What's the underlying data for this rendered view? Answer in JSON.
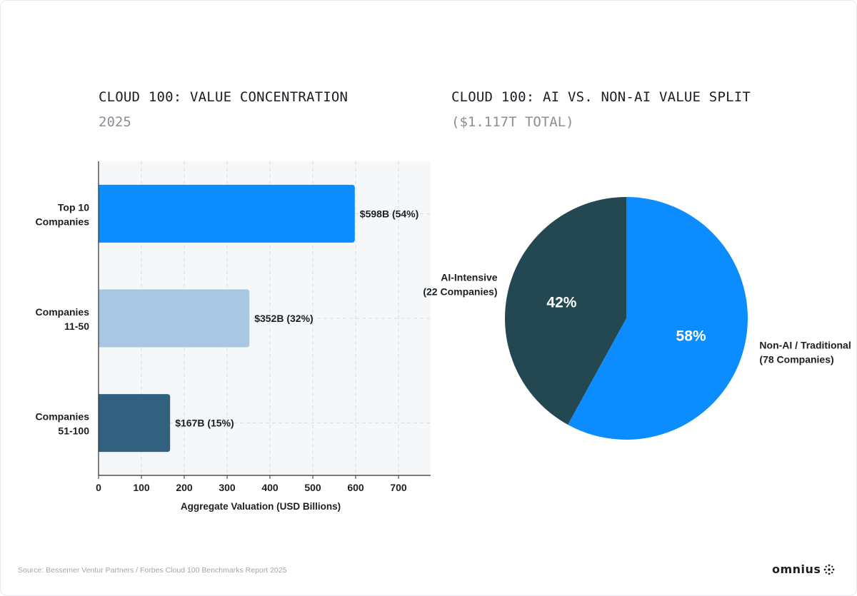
{
  "footer": {
    "source": "Source: Bessemer Ventur Partners / Forbes Cloud 100 Benchmarks Report 2025",
    "logo_text": "omnius"
  },
  "chart_data": [
    {
      "type": "bar",
      "orientation": "horizontal",
      "title": "CLOUD 100: VALUE CONCENTRATION",
      "subtitle": "2025",
      "xlabel": "Aggregate Valuation (USD Billions)",
      "ylabel": "",
      "xlim": [
        0,
        775
      ],
      "xticks": [
        0,
        100,
        200,
        300,
        400,
        500,
        600,
        700
      ],
      "grid": true,
      "categories": [
        {
          "line1": "Top 10",
          "line2": "Companies"
        },
        {
          "line1": "Companies",
          "line2": "11-50"
        },
        {
          "line1": "Companies",
          "line2": "51-100"
        }
      ],
      "values": [
        598,
        352,
        167
      ],
      "data_labels": [
        "$598B (54%)",
        "$352B (32%)",
        "$167B (15%)"
      ],
      "colors": [
        "#0b8cff",
        "#a7c7e3",
        "#32617f"
      ]
    },
    {
      "type": "pie",
      "title": "CLOUD 100: AI VS. NON-AI VALUE SPLIT",
      "subtitle": "($1.117T TOTAL)",
      "slices": [
        {
          "line1": "Non-AI / Traditional",
          "line2": "(78 Companies)",
          "value": 58,
          "pct_label": "58%",
          "color": "#0b8cff"
        },
        {
          "line1": "AI-Intensive",
          "line2": "(22 Companies)",
          "value": 42,
          "pct_label": "42%",
          "color": "#244852"
        }
      ]
    }
  ]
}
